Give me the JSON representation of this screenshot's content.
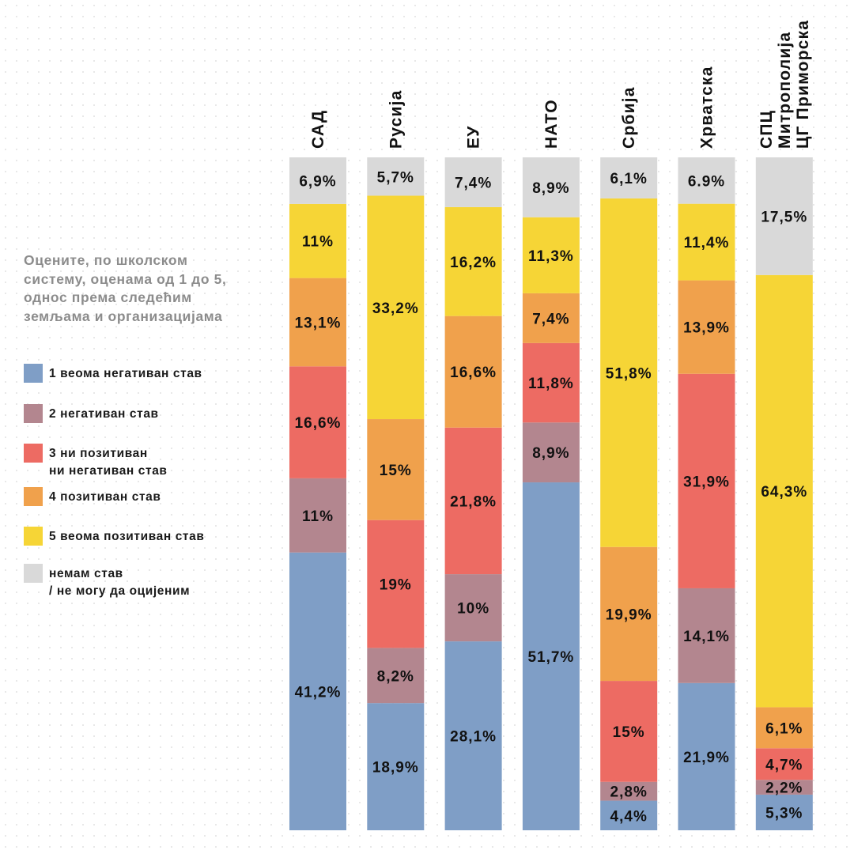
{
  "question": "Оцените, по школском\nсистему, оценама од 1 до 5,\nоднос према следећим\nземљама и организацијама",
  "legend": [
    {
      "key": "1",
      "label": "1 веома негативан став",
      "color": "#7f9ec6"
    },
    {
      "key": "2",
      "label": "2 негативан став",
      "color": "#b3868f"
    },
    {
      "key": "3",
      "label": "3 ни позитиван\nни негативан став",
      "color": "#ed6b63"
    },
    {
      "key": "4",
      "label": "4 позитиван став",
      "color": "#f0a14c"
    },
    {
      "key": "5",
      "label": "5 веома позитиван став",
      "color": "#f6d536"
    },
    {
      "key": "n",
      "label": " немам став\n/ не могу да оцијеним",
      "color": "#d9d9d9"
    }
  ],
  "chart_data": {
    "type": "bar",
    "stacked": true,
    "stack_order": [
      "1",
      "2",
      "3",
      "4",
      "5",
      "n"
    ],
    "categories": [
      "САД",
      "Русија",
      "ЕУ",
      "НАТО",
      "Србија",
      "Хрватска",
      "СПЦ\nМитрополија\nЦГ Приморска"
    ],
    "series": [
      {
        "key": "1",
        "name": "1 веома негативан став",
        "values": [
          41.2,
          18.9,
          28.1,
          51.7,
          4.4,
          21.9,
          5.3
        ],
        "labels": [
          "41,2%",
          "18,9%",
          "28,1%",
          "51,7%",
          "4,4%",
          "21,9%",
          "5,3%"
        ]
      },
      {
        "key": "2",
        "name": "2 негативан став",
        "values": [
          11,
          8.2,
          10,
          8.9,
          2.8,
          14.1,
          2.2
        ],
        "labels": [
          "11%",
          "8,2%",
          "10%",
          "8,9%",
          "2,8%",
          "14,1%",
          "2,2%"
        ]
      },
      {
        "key": "3",
        "name": "3 ни позитиван ни негативан став",
        "values": [
          16.6,
          19,
          21.8,
          11.8,
          15,
          31.9,
          4.7
        ],
        "labels": [
          "16,6%",
          "19%",
          "21,8%",
          "11,8%",
          "15%",
          "31,9%",
          "4,7%"
        ]
      },
      {
        "key": "4",
        "name": "4 позитиван став",
        "values": [
          13.1,
          15,
          16.6,
          7.4,
          19.9,
          13.9,
          6.1
        ],
        "labels": [
          "13,1%",
          "15%",
          "16,6%",
          "7,4%",
          "19,9%",
          "13,9%",
          "6,1%"
        ]
      },
      {
        "key": "5",
        "name": "5 веома позитиван став",
        "values": [
          11,
          33.2,
          16.2,
          11.3,
          51.8,
          11.4,
          64.3
        ],
        "labels": [
          "11%",
          "33,2%",
          "16,2%",
          "11,3%",
          "51,8%",
          "11,4%",
          "64,3%"
        ]
      },
      {
        "key": "n",
        "name": "немам став / не могу да оцијеним",
        "values": [
          6.9,
          5.7,
          7.4,
          8.9,
          6.1,
          6.9,
          17.5
        ],
        "labels": [
          "6,9%",
          "5,7%",
          "7,4%",
          "8,9%",
          "6,1%",
          "6.9%",
          "17,5%"
        ]
      }
    ],
    "ylim": [
      0,
      100
    ]
  }
}
